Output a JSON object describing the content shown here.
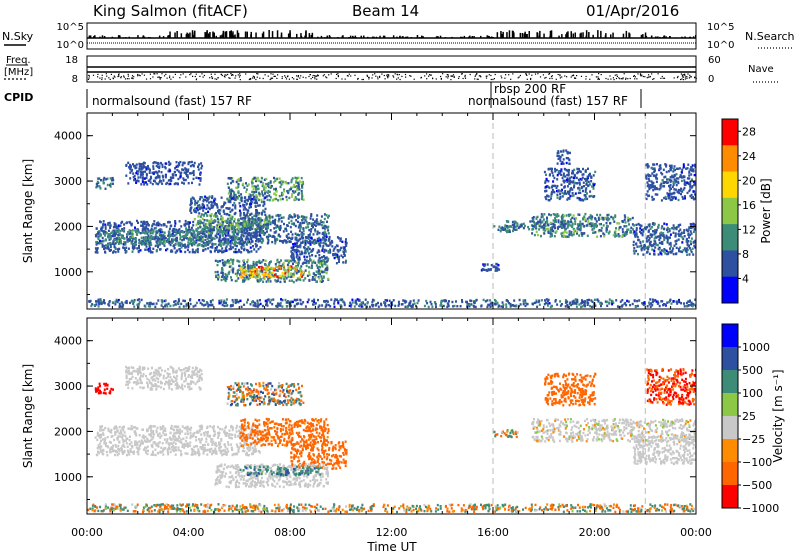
{
  "header": {
    "station": "King Salmon (fitACF)",
    "beam": "Beam 14",
    "date": "01/Apr/2016"
  },
  "aux_panels": {
    "nsky_label": "N.Sky",
    "nsky_ticks": [
      "10^5",
      "10^0"
    ],
    "nsearch_label": "N.Search",
    "nsearch_ticks": [
      "10^5",
      "10^0"
    ],
    "freq_label_1": "Freq.",
    "freq_label_2": "[MHz]",
    "freq_ticks": [
      "18",
      "8"
    ],
    "nave_label": "Nave",
    "nave_ticks": [
      "60",
      "0"
    ],
    "cpid_label": "CPID",
    "cpid_modes": [
      {
        "label": "normalsound (fast) 157 RF",
        "start": "00:00"
      },
      {
        "label": "rbsp 200 RF",
        "start": "16:00"
      },
      {
        "label": "normalsound (fast) 157 RF",
        "start": "16:00"
      }
    ]
  },
  "chart_data": [
    {
      "type": "heatmap",
      "name": "power",
      "xlabel": "Time UT",
      "ylabel": "Slant Range [km]",
      "x_ticks": [
        "00:00",
        "04:00",
        "08:00",
        "12:00",
        "16:00",
        "20:00",
        "00:00"
      ],
      "xlim_hours": [
        0,
        24
      ],
      "y_ticks": [
        1000,
        2000,
        3000,
        4000
      ],
      "ylim": [
        180,
        4500
      ],
      "colorbar_label": "Power [dB]",
      "colorbar_ticks": [
        4,
        8,
        12,
        16,
        20,
        24,
        28
      ],
      "colorbar_range": [
        0,
        30
      ],
      "colors": [
        "#0000ff",
        "#2d50a0",
        "#3c8c78",
        "#8cc846",
        "#ffd700",
        "#ff8c00",
        "#ff0000"
      ],
      "scatter_regions": [
        {
          "t": [
            0.3,
            6.8
          ],
          "r": [
            1450,
            2150
          ],
          "v": [
            4,
            9
          ]
        },
        {
          "t": [
            0.3,
            6.0
          ],
          "r": [
            1600,
            1950
          ],
          "v": [
            7,
            13
          ]
        },
        {
          "t": [
            4.2,
            7.2
          ],
          "r": [
            1950,
            2300
          ],
          "v": [
            8,
            16
          ]
        },
        {
          "t": [
            6.0,
            9.5
          ],
          "r": [
            1650,
            2300
          ],
          "v": [
            5,
            10
          ]
        },
        {
          "t": [
            8.0,
            10.2
          ],
          "r": [
            1200,
            1800
          ],
          "v": [
            4,
            9
          ]
        },
        {
          "t": [
            5.0,
            9.5
          ],
          "r": [
            800,
            1300
          ],
          "v": [
            6,
            14
          ]
        },
        {
          "t": [
            6.0,
            8.5
          ],
          "r": [
            900,
            1150
          ],
          "v": [
            14,
            28
          ]
        },
        {
          "t": [
            0.3,
            1.0
          ],
          "r": [
            2850,
            3100
          ],
          "v": [
            5,
            12
          ]
        },
        {
          "t": [
            1.5,
            4.5
          ],
          "r": [
            2950,
            3450
          ],
          "v": [
            4,
            8
          ]
        },
        {
          "t": [
            5.5,
            8.5
          ],
          "r": [
            2600,
            3100
          ],
          "v": [
            6,
            16
          ]
        },
        {
          "t": [
            4.0,
            7.0
          ],
          "r": [
            2300,
            2700
          ],
          "v": [
            4,
            9
          ]
        },
        {
          "t": [
            16.0,
            17.0
          ],
          "r": [
            1900,
            2050
          ],
          "v": [
            5,
            11
          ]
        },
        {
          "t": [
            16.5,
            19.0
          ],
          "r": [
            1950,
            2150
          ],
          "v": [
            5,
            12
          ]
        },
        {
          "t": [
            17.5,
            21.5
          ],
          "r": [
            1800,
            2300
          ],
          "v": [
            5,
            14
          ]
        },
        {
          "t": [
            21.5,
            24.0
          ],
          "r": [
            1400,
            2100
          ],
          "v": [
            4,
            10
          ]
        },
        {
          "t": [
            22.0,
            24.0
          ],
          "r": [
            2600,
            3400
          ],
          "v": [
            4,
            9
          ]
        },
        {
          "t": [
            18.0,
            20.0
          ],
          "r": [
            2600,
            3300
          ],
          "v": [
            4,
            9
          ]
        },
        {
          "t": [
            18.5,
            19.0
          ],
          "r": [
            3400,
            3700
          ],
          "v": [
            4,
            8
          ]
        },
        {
          "t": [
            15.5,
            16.2
          ],
          "r": [
            1050,
            1200
          ],
          "v": [
            4,
            8
          ]
        },
        {
          "t": [
            0.0,
            24.0
          ],
          "r": [
            250,
            420
          ],
          "v": [
            4,
            10
          ]
        }
      ]
    },
    {
      "type": "heatmap",
      "name": "velocity",
      "xlabel": "Time UT",
      "ylabel": "Slant Range [km]",
      "x_ticks": [
        "00:00",
        "04:00",
        "08:00",
        "12:00",
        "16:00",
        "20:00",
        "00:00"
      ],
      "xlim_hours": [
        0,
        24
      ],
      "y_ticks": [
        1000,
        2000,
        3000,
        4000
      ],
      "ylim": [
        180,
        4500
      ],
      "colorbar_label": "Velocity [m s⁻¹]",
      "colorbar_ticks": [
        "1000",
        "500",
        "100",
        "25",
        "−25",
        "−100",
        "−500",
        "−1000"
      ],
      "colors": [
        "#0000ff",
        "#2d50a0",
        "#3c8c78",
        "#8cc846",
        "#c8c8c8",
        "#ff8c00",
        "#ff6600",
        "#ff0000"
      ],
      "scatter_regions": [
        {
          "t": [
            0.3,
            6.8
          ],
          "r": [
            1500,
            2150
          ],
          "v": [
            -20,
            20
          ]
        },
        {
          "t": [
            6.0,
            9.5
          ],
          "r": [
            1700,
            2300
          ],
          "v": [
            -400,
            -80
          ]
        },
        {
          "t": [
            8.0,
            10.2
          ],
          "r": [
            1200,
            1800
          ],
          "v": [
            -500,
            -100
          ]
        },
        {
          "t": [
            5.0,
            9.5
          ],
          "r": [
            800,
            1300
          ],
          "v": [
            -20,
            20
          ]
        },
        {
          "t": [
            6.0,
            9.2
          ],
          "r": [
            1050,
            1250
          ],
          "v": [
            50,
            400
          ]
        },
        {
          "t": [
            0.3,
            1.0
          ],
          "r": [
            2850,
            3100
          ],
          "v": [
            -1000,
            -500
          ]
        },
        {
          "t": [
            1.5,
            4.5
          ],
          "r": [
            2950,
            3450
          ],
          "v": [
            -20,
            20
          ]
        },
        {
          "t": [
            5.5,
            8.5
          ],
          "r": [
            2600,
            3100
          ],
          "v": [
            -500,
            500
          ]
        },
        {
          "t": [
            16.0,
            17.0
          ],
          "r": [
            1900,
            2050
          ],
          "v": [
            -200,
            200
          ]
        },
        {
          "t": [
            17.5,
            24.0
          ],
          "r": [
            1800,
            2300
          ],
          "v": [
            -30,
            30
          ]
        },
        {
          "t": [
            21.5,
            24.0
          ],
          "r": [
            1300,
            1900
          ],
          "v": [
            -20,
            20
          ]
        },
        {
          "t": [
            22.0,
            24.0
          ],
          "r": [
            2600,
            3400
          ],
          "v": [
            -800,
            -150
          ]
        },
        {
          "t": [
            18.0,
            20.0
          ],
          "r": [
            2600,
            3300
          ],
          "v": [
            -500,
            -100
          ]
        },
        {
          "t": [
            0.0,
            24.0
          ],
          "r": [
            250,
            420
          ],
          "v": [
            -300,
            300
          ]
        }
      ]
    }
  ]
}
